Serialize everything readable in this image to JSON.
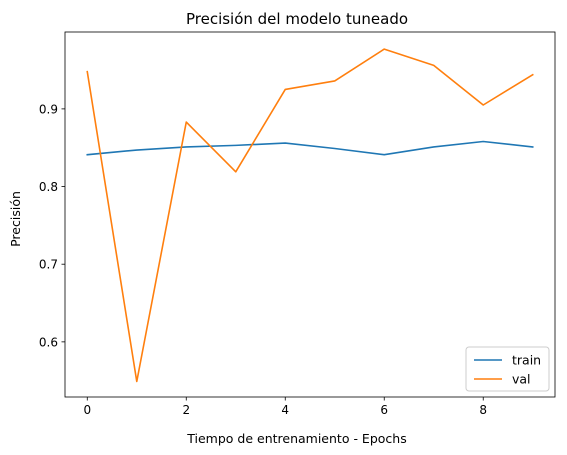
{
  "chart_data": {
    "type": "line",
    "title": "Precisión del modelo tuneado",
    "xlabel": "Tiempo de entrenamiento - Epochs",
    "ylabel": "Precisión",
    "x": [
      0,
      1,
      2,
      3,
      4,
      5,
      6,
      7,
      8,
      9
    ],
    "xlim": [
      -0.45,
      9.45
    ],
    "ylim": [
      0.529,
      0.999
    ],
    "xticks": [
      0,
      2,
      4,
      6,
      8
    ],
    "xtick_labels": [
      "0",
      "2",
      "4",
      "6",
      "8"
    ],
    "yticks": [
      0.6,
      0.7,
      0.8,
      0.9
    ],
    "ytick_labels": [
      "0.6",
      "0.7",
      "0.8",
      "0.9"
    ],
    "grid": false,
    "legend_position": "bottom-right",
    "series": [
      {
        "name": "train",
        "color": "#1f77b4",
        "values": [
          0.841,
          0.847,
          0.851,
          0.853,
          0.856,
          0.849,
          0.841,
          0.851,
          0.858,
          0.851
        ]
      },
      {
        "name": "val",
        "color": "#ff7f0e",
        "values": [
          0.948,
          0.549,
          0.883,
          0.819,
          0.925,
          0.936,
          0.977,
          0.956,
          0.905,
          0.944
        ]
      }
    ]
  }
}
